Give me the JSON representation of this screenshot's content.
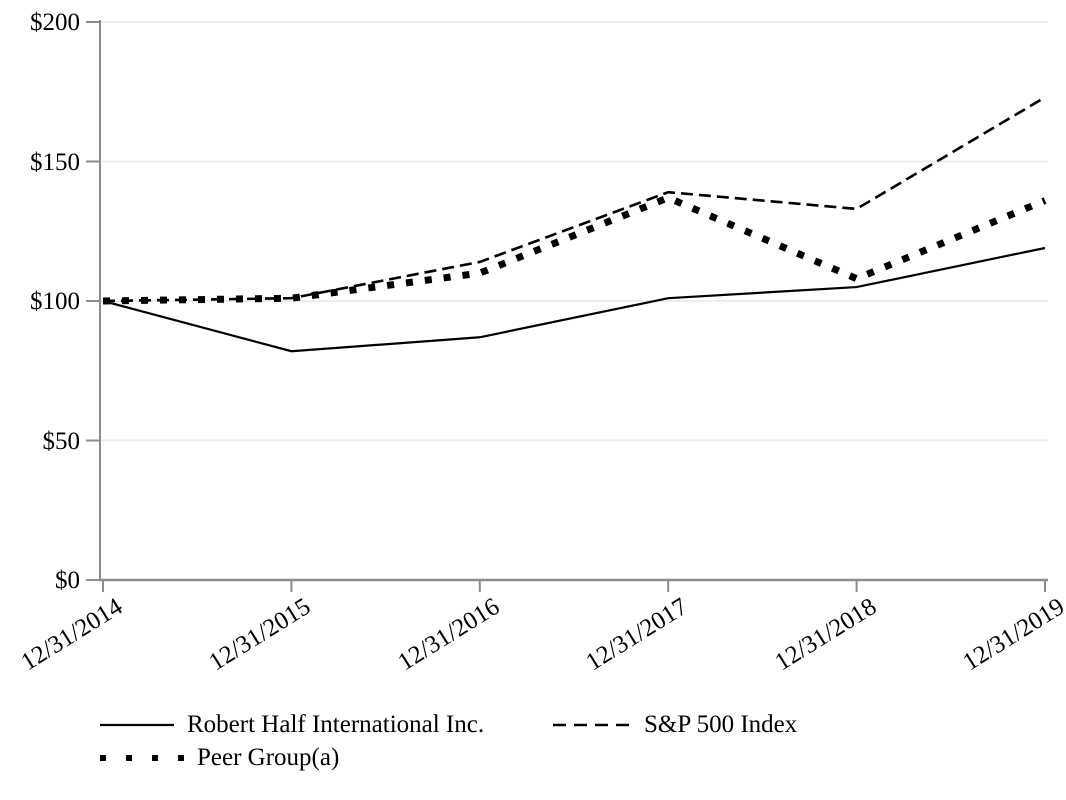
{
  "chart_data": {
    "type": "line",
    "title": "",
    "x_labels": [
      "12/31/2014",
      "12/31/2015",
      "12/31/2016",
      "12/31/2017",
      "12/31/2018",
      "12/31/2019"
    ],
    "ylim": [
      0,
      200
    ],
    "y_axis": {
      "tick_values": [
        0,
        50,
        100,
        150,
        200
      ],
      "tick_labels": [
        "$0",
        "$50",
        "$100",
        "$150",
        "$200"
      ]
    },
    "grid": true,
    "legend_position": "bottom-left",
    "series": [
      {
        "name": "Robert Half International Inc.",
        "line_style": "solid",
        "values": [
          100,
          82,
          87,
          101,
          105,
          119
        ]
      },
      {
        "name": "S&P 500 Index",
        "line_style": "dashed",
        "values": [
          100,
          101,
          114,
          139,
          133,
          173
        ]
      },
      {
        "name": "Peer Group(a)",
        "line_style": "dotted",
        "values": [
          100,
          101,
          110,
          137,
          108,
          136
        ]
      }
    ],
    "colors": {
      "series": "#000000",
      "grid": "#ececec",
      "axis": "#8c8c8c",
      "text": "#000000",
      "background": "#ffffff"
    }
  }
}
